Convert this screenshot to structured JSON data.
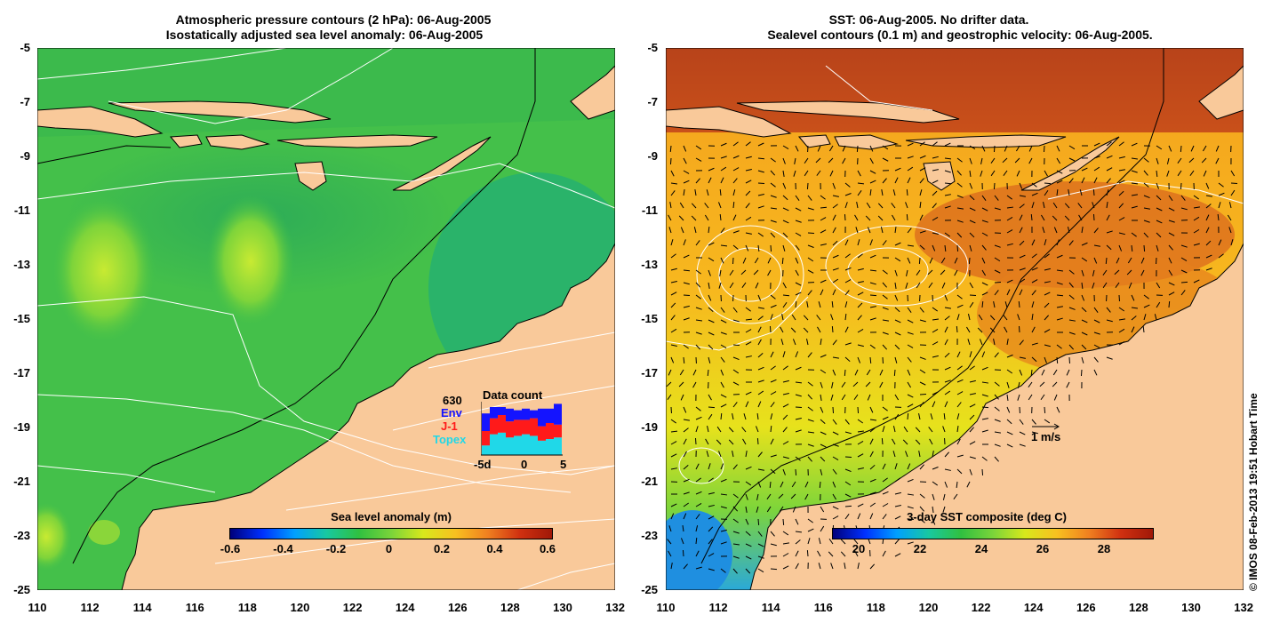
{
  "left_panel": {
    "title_line1": "Atmospheric pressure contours (2 hPa): 06-Aug-2005",
    "title_line2": "Isostatically adjusted sea level anomaly: 06-Aug-2005",
    "colorbar_label": "Sea level anomaly (m)",
    "colorbar_ticks": [
      "-0.6",
      "-0.4",
      "-0.2",
      "0",
      "0.2",
      "0.4",
      "0.6"
    ],
    "data_count": {
      "title": "Data count",
      "total": "630",
      "legend": [
        "Env",
        "J-1",
        "Topex"
      ],
      "axis_ticks": [
        "-5d",
        "0",
        "5"
      ],
      "colors": {
        "env": "#1414ff",
        "j1": "#ff1a1a",
        "topex": "#20d8e8"
      }
    }
  },
  "right_panel": {
    "title_line1": "SST: 06-Aug-2005. No drifter data.",
    "title_line2": "Sealevel contours (0.1 m) and geostrophic velocity: 06-Aug-2005.",
    "colorbar_label": "3-day SST composite (deg C)",
    "colorbar_ticks": [
      "20",
      "22",
      "24",
      "26",
      "28"
    ],
    "scale_label": "1 m/s"
  },
  "axes": {
    "y_ticks": [
      "-5",
      "-7",
      "-9",
      "-11",
      "-13",
      "-15",
      "-17",
      "-19",
      "-21",
      "-23",
      "-25"
    ],
    "x_ticks": [
      "110",
      "112",
      "114",
      "116",
      "118",
      "120",
      "122",
      "124",
      "126",
      "128",
      "130",
      "132"
    ]
  },
  "credit": "© IMOS 08-Feb-2013 19:51 Hobart Time",
  "colors": {
    "land": "#f9c99a",
    "sea_left": "#22b04a",
    "sea_right": "#f5a623"
  }
}
